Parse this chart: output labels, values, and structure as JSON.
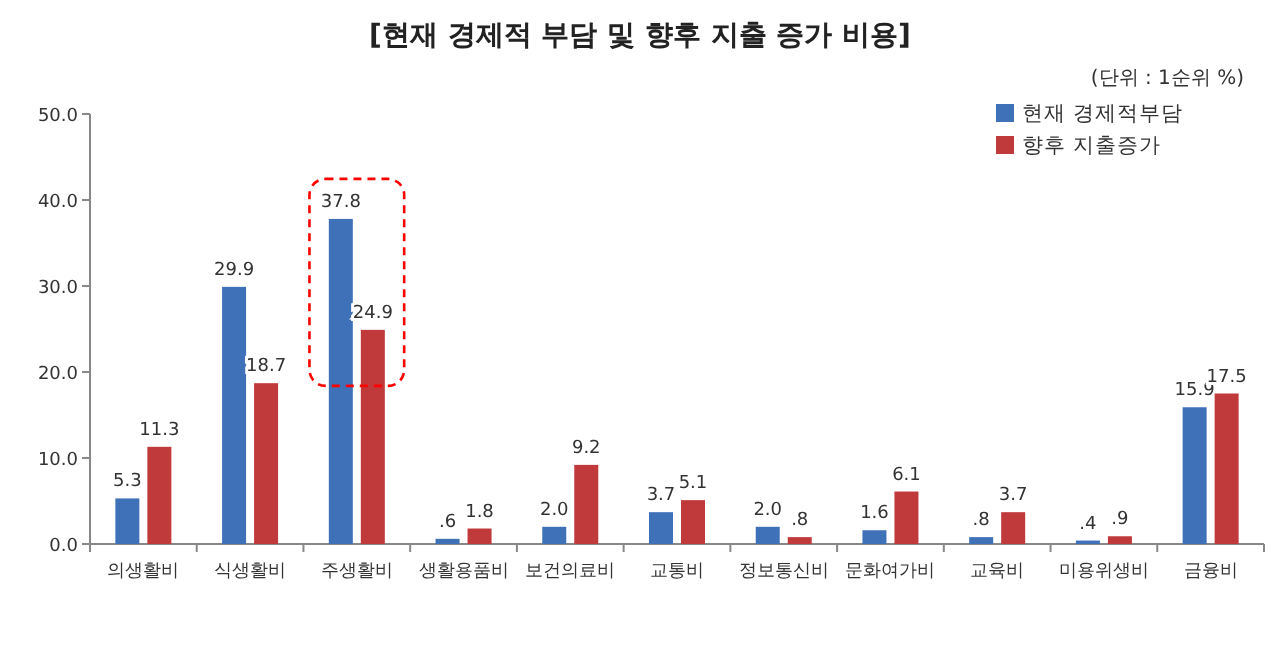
{
  "chart_data": {
    "type": "bar",
    "title": "[현재 경제적 부담 및 향후 지출 증가 비용]",
    "annotations": [
      "(단위 : 1순위 %)"
    ],
    "categories": [
      "의생활비",
      "식생활비",
      "주생활비",
      "생활용품비",
      "보건의료비",
      "교통비",
      "정보통신비",
      "문화여가비",
      "교육비",
      "미용위생비",
      "금융비"
    ],
    "series": [
      {
        "name": "현재 경제적부담",
        "color": "#3f71b8",
        "values": [
          5.3,
          29.9,
          37.8,
          0.6,
          2.0,
          3.7,
          2.0,
          1.6,
          0.8,
          0.4,
          15.9
        ],
        "value_labels": [
          "5.3",
          "29.9",
          "37.8",
          ".6",
          "2.0",
          "3.7",
          "2.0",
          "1.6",
          ".8",
          ".4",
          "15.9"
        ]
      },
      {
        "name": "향후 지출증가",
        "color": "#c0393b",
        "values": [
          11.3,
          18.7,
          24.9,
          1.8,
          9.2,
          5.1,
          0.8,
          6.1,
          3.7,
          0.9,
          17.5
        ],
        "value_labels": [
          "11.3",
          "18.7",
          "24.9",
          "1.8",
          "9.2",
          "5.1",
          ".8",
          "6.1",
          "3.7",
          ".9",
          "17.5"
        ]
      }
    ],
    "ylim": [
      0,
      50
    ],
    "yticks": [
      {
        "value": 0,
        "label": "0.0"
      },
      {
        "value": 10,
        "label": "10.0"
      },
      {
        "value": 20,
        "label": "20.0"
      },
      {
        "value": 30,
        "label": "30.0"
      },
      {
        "value": 40,
        "label": "40.0"
      },
      {
        "value": 50,
        "label": "50.0"
      }
    ],
    "legend": "top right"
  }
}
